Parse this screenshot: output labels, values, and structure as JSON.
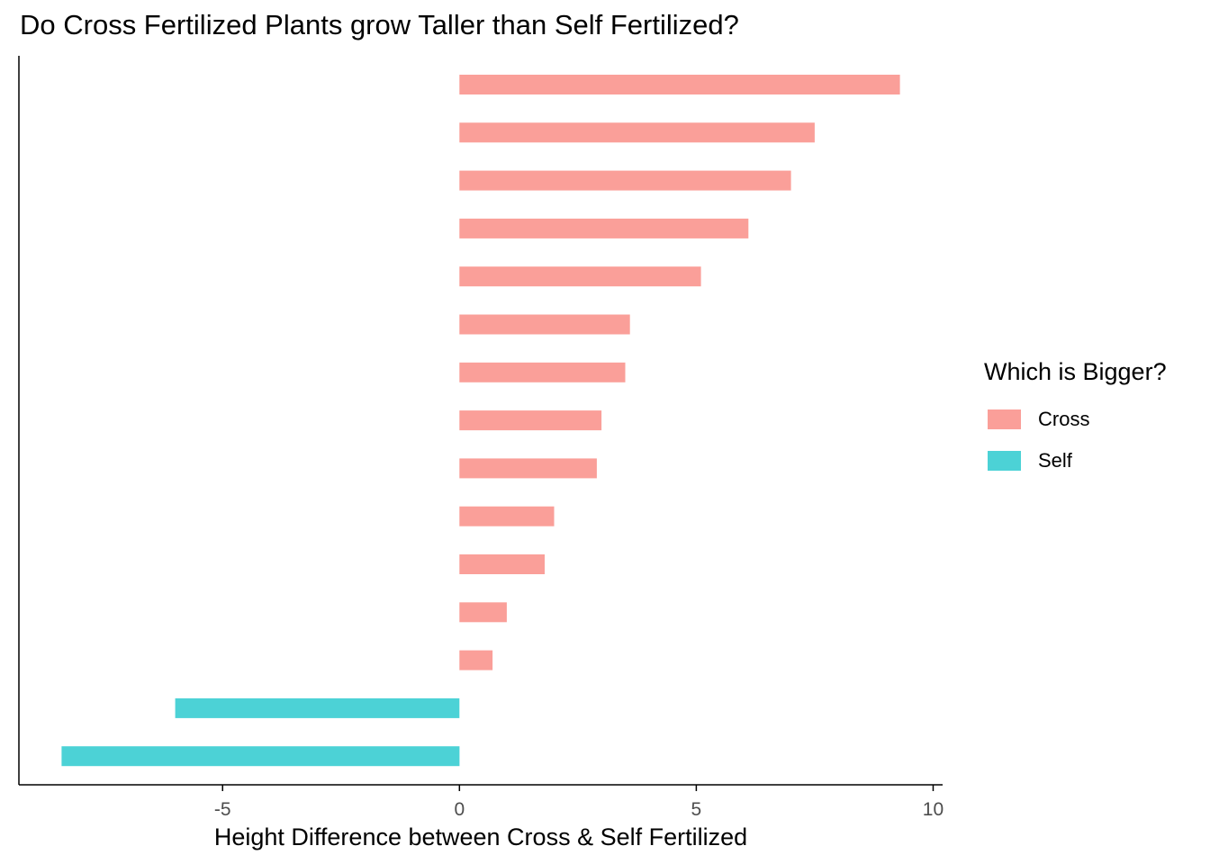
{
  "chart_data": {
    "type": "bar",
    "orientation": "horizontal",
    "title": "Do Cross Fertilized Plants grow Taller than Self Fertilized?",
    "xlabel": "Height Difference between Cross & Self Fertilized",
    "ylabel": "",
    "xlim": [
      -9.3,
      10.2
    ],
    "xticks": [
      -5,
      0,
      5,
      10
    ],
    "xtick_labels": [
      "-5",
      "0",
      "5",
      "10"
    ],
    "grid": false,
    "legend": {
      "title": "Which is Bigger?",
      "placement": "right",
      "entries": [
        {
          "label": "Cross",
          "color": "#F8766D"
        },
        {
          "label": "Self",
          "color": "#00BFC4"
        }
      ]
    },
    "bar_opacity": 0.7,
    "values": [
      9.3,
      7.5,
      7.0,
      6.1,
      5.1,
      3.6,
      3.5,
      3.0,
      2.9,
      2.0,
      1.8,
      1.0,
      0.7,
      -6.0,
      -8.4
    ],
    "groups": [
      "Cross",
      "Cross",
      "Cross",
      "Cross",
      "Cross",
      "Cross",
      "Cross",
      "Cross",
      "Cross",
      "Cross",
      "Cross",
      "Cross",
      "Cross",
      "Self",
      "Self"
    ]
  }
}
